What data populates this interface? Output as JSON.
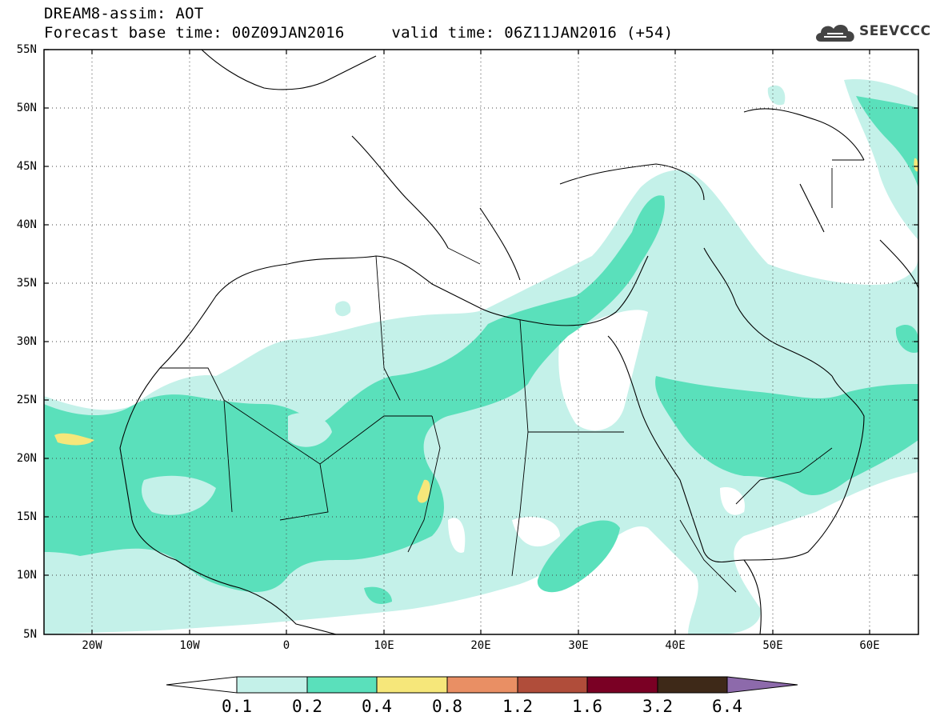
{
  "title_line1": "DREAM8-assim: AOT",
  "title_line2": "Forecast base time: 00Z09JAN2016     valid time: 06Z11JAN2016 (+54)",
  "logo_text": "SEEVCCC",
  "lat_labels": [
    "55N",
    "50N",
    "45N",
    "40N",
    "35N",
    "30N",
    "25N",
    "20N",
    "15N",
    "10N",
    "5N"
  ],
  "lon_labels": [
    "20W",
    "10W",
    "0",
    "10E",
    "20E",
    "30E",
    "40E",
    "50E",
    "60E"
  ],
  "colorbar": {
    "labels": [
      "0.1",
      "0.2",
      "0.4",
      "0.8",
      "1.2",
      "1.6",
      "3.2",
      "6.4"
    ],
    "colors": [
      "#ffffff",
      "#c4f1e9",
      "#5ae0bb",
      "#f6e77a",
      "#e98f64",
      "#b04d3a",
      "#7a0024",
      "#3e2918",
      "#8d6aab"
    ]
  },
  "colors": {
    "aot_0_1": "#c4f1e9",
    "aot_0_2": "#5ae0bb",
    "aot_0_4": "#f6e77a"
  }
}
